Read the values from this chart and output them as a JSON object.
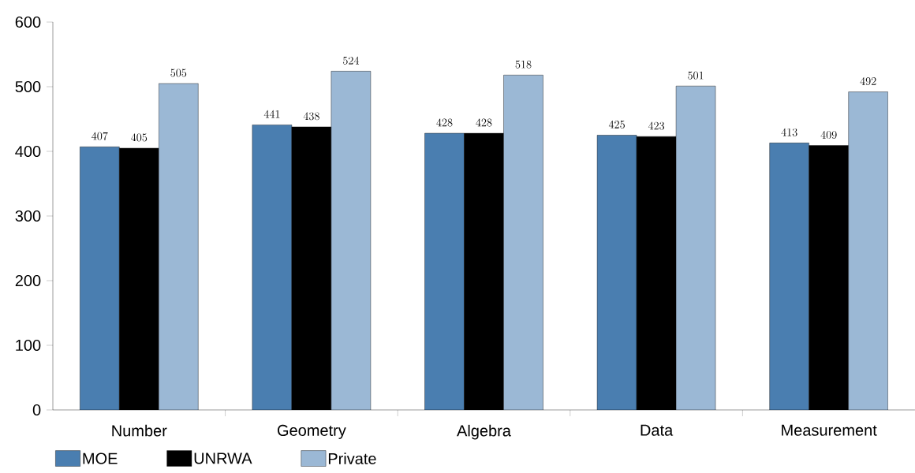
{
  "chart_data": {
    "type": "bar",
    "categories": [
      "Number",
      "Geometry",
      "Algebra",
      "Data",
      "Measurement"
    ],
    "series": [
      {
        "name": "MOE",
        "color": "#4a7eb0",
        "values": [
          407,
          441,
          428,
          425,
          413
        ]
      },
      {
        "name": "UNRWA",
        "color": "#000000",
        "values": [
          405,
          438,
          428,
          423,
          409
        ]
      },
      {
        "name": "Private",
        "color": "#9bb8d5",
        "values": [
          505,
          524,
          518,
          501,
          492
        ]
      }
    ],
    "ylim": [
      0,
      600
    ],
    "yticks": [
      0,
      100,
      200,
      300,
      400,
      500,
      600
    ],
    "data_labels": true,
    "grid": false,
    "legend": "bottom left"
  }
}
